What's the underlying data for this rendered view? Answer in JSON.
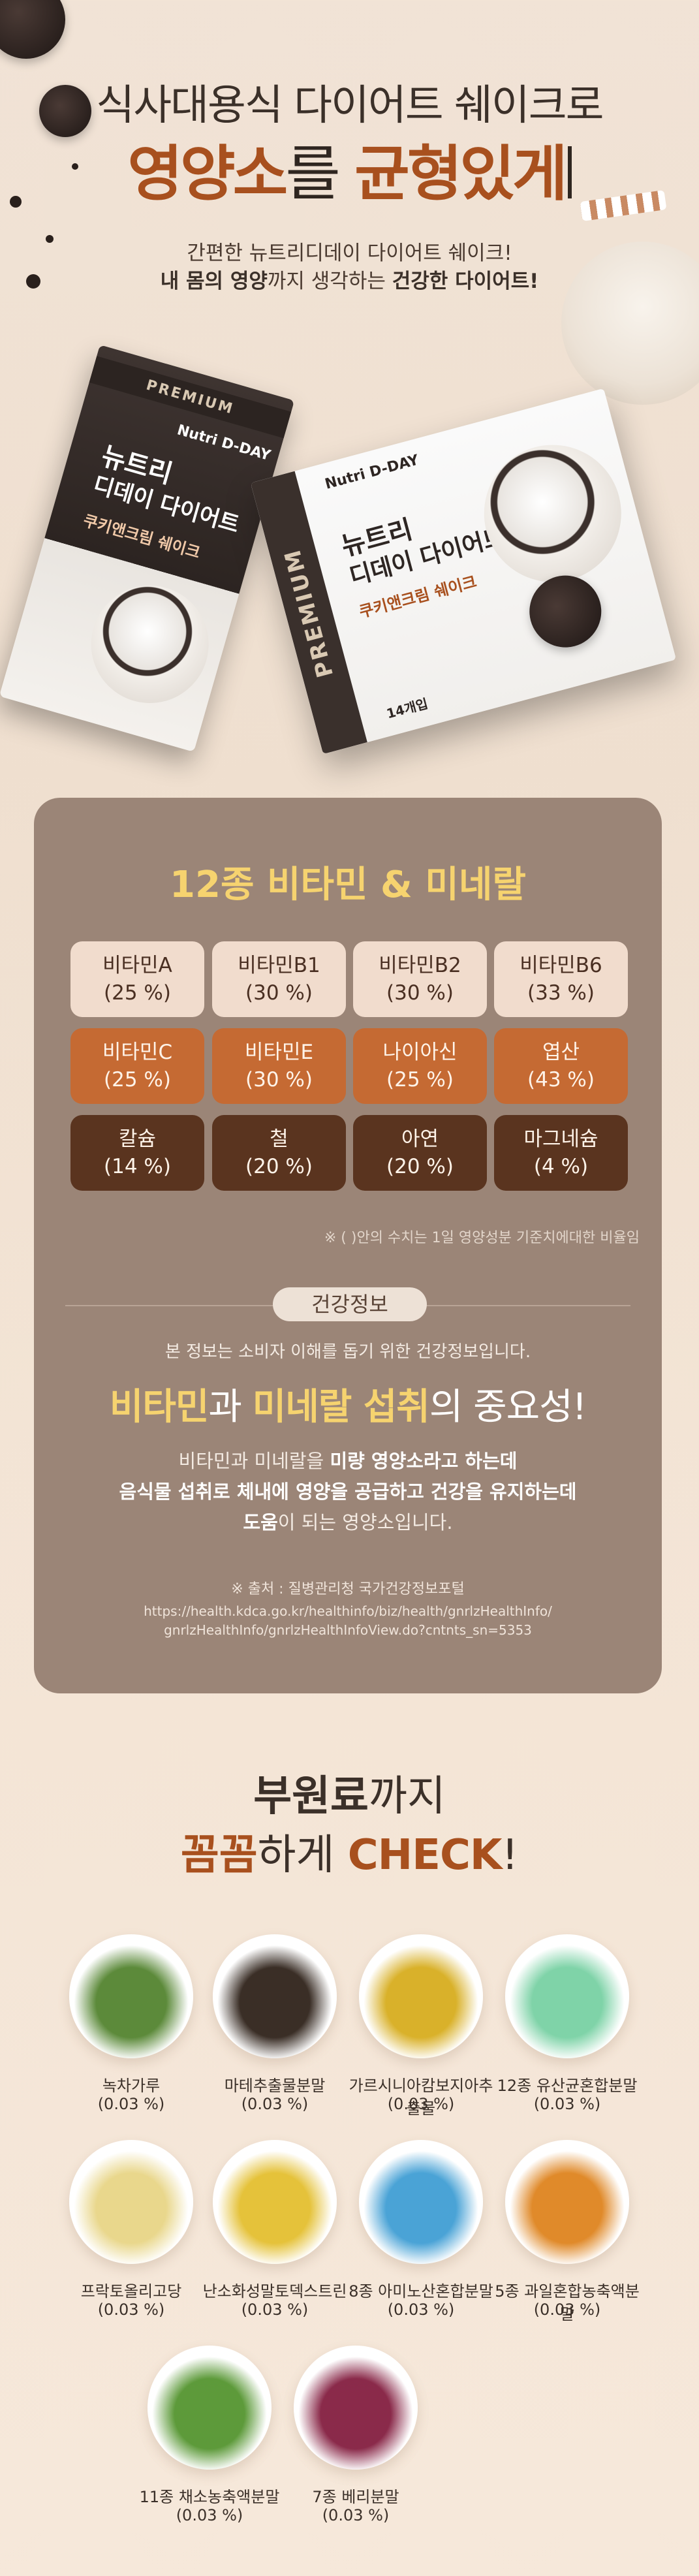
{
  "hero": {
    "line1": "식사대용식 다이어트 쉐이크로",
    "line2_highlight_a": "영양소",
    "line2_plain": "를 ",
    "line2_highlight_b": "균형있게",
    "sub1_a": "간편한 뉴트리디데이 다이어트 쉐이크!",
    "sub2_a": "내 몸의 영양",
    "sub2_b": "까지 생각하는 ",
    "sub2_c": "건강한 다이어트!"
  },
  "product": {
    "band": "PREMIUM",
    "brand": "Nutri D-DAY",
    "title_line1": "뉴트리",
    "title_line2": "디데이 다이어트",
    "flavor": "쿠키앤크림 쉐이크",
    "qty": "14개입"
  },
  "vitamins": {
    "title": "12종 비타민 & 미네랄",
    "rows": [
      [
        {
          "name": "비타민A",
          "pct": "(25 %)"
        },
        {
          "name": "비타민B1",
          "pct": "(30 %)"
        },
        {
          "name": "비타민B2",
          "pct": "(30 %)"
        },
        {
          "name": "비타민B6",
          "pct": "(33 %)"
        }
      ],
      [
        {
          "name": "비타민C",
          "pct": "(25 %)"
        },
        {
          "name": "비타민E",
          "pct": "(30 %)"
        },
        {
          "name": "나이아신",
          "pct": "(25 %)"
        },
        {
          "name": "엽산",
          "pct": "(43 %)"
        }
      ],
      [
        {
          "name": "칼슘",
          "pct": "(14 %)"
        },
        {
          "name": "철",
          "pct": "(20 %)"
        },
        {
          "name": "아연",
          "pct": "(20 %)"
        },
        {
          "name": "마그네슘",
          "pct": "(4 %)"
        }
      ]
    ],
    "note": "※ ( )안의 수치는 1일 영양성분 기준치에대한 비율임"
  },
  "health": {
    "pill": "건강정보",
    "info": "본 정보는 소비자 이해를 돕기 위한 건강정보입니다.",
    "imp_a": "비타민",
    "imp_b": "과 ",
    "imp_c": "미네랄 섭취",
    "imp_d": "의 중요성!",
    "body1_a": "비타민과 미네랄을 ",
    "body1_b": "미량 영양소라고 하는데",
    "body2": "음식물 섭취로 체내에 영양을 공급하고 건강을 유지하는데",
    "body3_a": "도움",
    "body3_b": "이 되는 영양소입니다.",
    "src1": "※ 출처 : 질병관리청 국가건강정보포털",
    "src2": "https://health.kdca.go.kr/healthinfo/biz/health/gnrlzHealthInfo/",
    "src3": "gnrlzHealthInfo/gnrlzHealthInfoView.do?cntnts_sn=5353"
  },
  "check": {
    "line1_b": "부원료",
    "line1_r": "까지",
    "line2_a": "꼼꼼",
    "line2_b": "하게 ",
    "line2_c": "CHECK",
    "line2_d": "!",
    "items": [
      {
        "name": "녹차가루",
        "val": "(0.03 %)",
        "icon": "green-tea-icon",
        "color": "#5c8a3a"
      },
      {
        "name": "마테추출물분말",
        "val": "(0.03 %)",
        "icon": "mate-leaves-icon",
        "color": "#3a2e26"
      },
      {
        "name": "가르시니아캄보지아추출물",
        "val": "(0.03 %)",
        "icon": "garcinia-icon",
        "color": "#d9b12a"
      },
      {
        "name": "12종 유산균혼합분말",
        "val": "(0.03 %)",
        "icon": "probiotics-icon",
        "color": "#7fd3a8"
      },
      {
        "name": "프락토올리고당",
        "val": "(0.03 %)",
        "icon": "oligosaccharide-icon",
        "color": "#e9d78c"
      },
      {
        "name": "난소화성말토덱스트린",
        "val": "(0.03 %)",
        "icon": "corn-icon",
        "color": "#e5c23a"
      },
      {
        "name": "8종 아미노산혼합분말",
        "val": "(0.03 %)",
        "icon": "amino-acid-icon",
        "color": "#4aa3d6"
      },
      {
        "name": "5종 과일혼합농축액분말",
        "val": "(0.03 %)",
        "icon": "fruits-icon",
        "color": "#e08a2a"
      },
      {
        "name": "11종 채소농축액분말",
        "val": "(0.03 %)",
        "icon": "vegetables-icon",
        "color": "#5d9a3a"
      },
      {
        "name": "7종 베리분말",
        "val": "(0.03 %)",
        "icon": "berries-icon",
        "color": "#8a2a4a"
      }
    ]
  }
}
